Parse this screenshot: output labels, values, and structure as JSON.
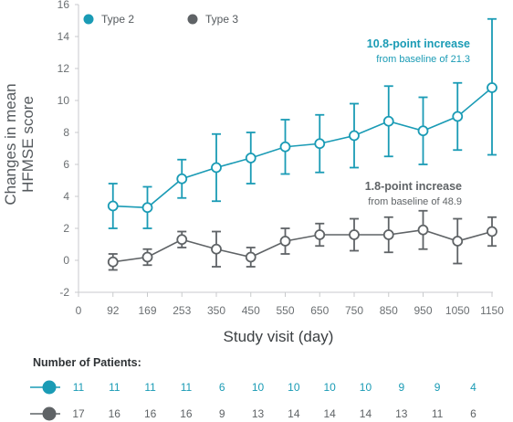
{
  "colors": {
    "type2": "#1a9bb5",
    "type3": "#5f6366",
    "axis": "#c8cacc"
  },
  "chart_data": {
    "type": "line",
    "ylabel_lines": [
      "Changes in mean",
      "HFMSE score"
    ],
    "xlabel": "Study visit (day)",
    "x_ticks": [
      "0",
      "92",
      "169",
      "253",
      "350",
      "450",
      "550",
      "650",
      "750",
      "850",
      "950",
      "1050",
      "1150"
    ],
    "ylim": [
      -2,
      16
    ],
    "y_ticks": [
      -2,
      0,
      2,
      4,
      6,
      8,
      10,
      12,
      14,
      16
    ],
    "legend": [
      "Type 2",
      "Type 3"
    ],
    "series": [
      {
        "name": "Type 2",
        "x": [
          "92",
          "169",
          "253",
          "350",
          "450",
          "550",
          "650",
          "750",
          "850",
          "950",
          "1050",
          "1150"
        ],
        "values": [
          3.4,
          3.3,
          5.1,
          5.8,
          6.4,
          7.1,
          7.3,
          7.8,
          8.7,
          8.1,
          9.0,
          10.8
        ],
        "err_low": [
          2.0,
          2.0,
          3.9,
          3.7,
          4.8,
          5.4,
          5.5,
          5.8,
          6.5,
          6.0,
          6.9,
          6.6
        ],
        "err_high": [
          4.8,
          4.6,
          6.3,
          7.9,
          8.0,
          8.8,
          9.1,
          9.8,
          10.9,
          10.2,
          11.1,
          15.1
        ]
      },
      {
        "name": "Type 3",
        "x": [
          "92",
          "169",
          "253",
          "350",
          "450",
          "550",
          "650",
          "750",
          "850",
          "950",
          "1050",
          "1150"
        ],
        "values": [
          -0.1,
          0.2,
          1.3,
          0.7,
          0.2,
          1.2,
          1.6,
          1.6,
          1.6,
          1.9,
          1.2,
          1.8
        ],
        "err_low": [
          -0.6,
          -0.3,
          0.8,
          -0.4,
          -0.4,
          0.4,
          0.9,
          0.6,
          0.5,
          0.7,
          -0.2,
          0.9
        ],
        "err_high": [
          0.4,
          0.7,
          1.8,
          1.8,
          0.8,
          2.0,
          2.3,
          2.6,
          2.7,
          3.1,
          2.6,
          2.7
        ]
      }
    ],
    "annotations": [
      {
        "title": "10.8-point increase",
        "subtitle": "from baseline of 21.3",
        "series": "Type 2"
      },
      {
        "title": "1.8-point increase",
        "subtitle": "from baseline of 48.9",
        "series": "Type 3"
      }
    ]
  },
  "patients": {
    "title": "Number of Patients:",
    "type2": [
      11,
      11,
      11,
      11,
      6,
      10,
      10,
      10,
      10,
      9,
      9,
      4
    ],
    "type3": [
      17,
      16,
      16,
      16,
      9,
      13,
      14,
      14,
      14,
      13,
      11,
      6
    ]
  }
}
